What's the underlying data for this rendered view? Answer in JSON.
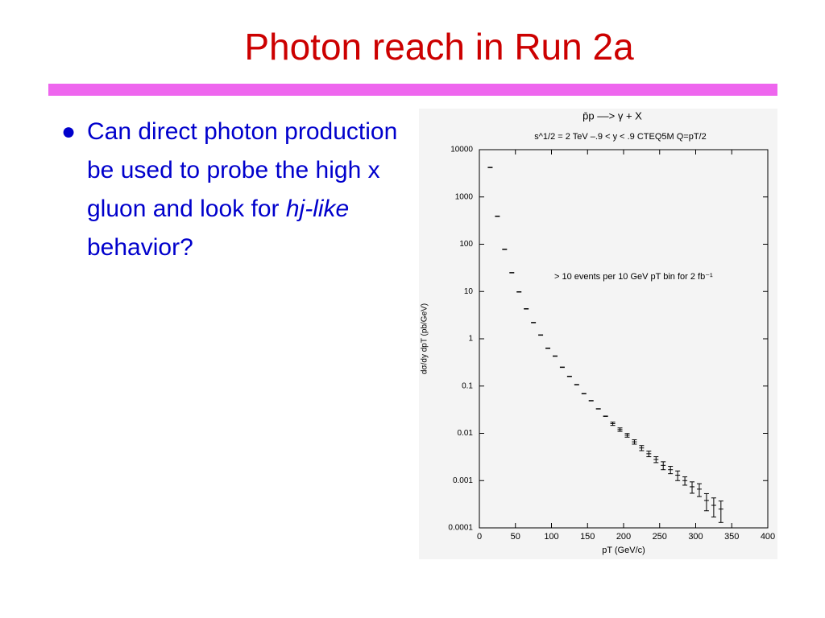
{
  "title": "Photon reach in Run 2a",
  "bullet": {
    "text": "Can direct photon production be used to probe the high x gluon and look for",
    "emphasis": "hj-like",
    "tail": "behavior?"
  },
  "chart_data": {
    "type": "scatter",
    "title": "p̄p ––> γ + X",
    "subtitle": "s^1/2 = 2 TeV    –.9 < y < .9    CTEQ5M    Q=pT/2",
    "annotation": "> 10 events per 10 GeV pT bin for 2 fb⁻¹",
    "xlabel": "pT (GeV/c)",
    "ylabel": "dσ/dy dpT (pb/GeV)",
    "x": [
      15,
      25,
      35,
      45,
      55,
      65,
      75,
      85,
      95,
      105,
      115,
      125,
      135,
      145,
      155,
      165,
      175,
      185,
      195,
      205,
      215,
      225,
      235,
      245,
      255,
      265,
      275,
      285,
      295,
      305,
      315,
      325,
      335
    ],
    "values": [
      4200,
      390,
      78,
      25,
      9.8,
      4.3,
      2.2,
      1.2,
      0.63,
      0.43,
      0.25,
      0.16,
      0.107,
      0.069,
      0.049,
      0.033,
      0.023,
      0.016,
      0.012,
      0.0091,
      0.0066,
      0.0049,
      0.0037,
      0.0028,
      0.0021,
      0.0017,
      0.0013,
      0.001,
      0.00074,
      0.00066,
      0.00038,
      0.0003,
      0.00025
    ],
    "errors": [
      null,
      null,
      null,
      null,
      null,
      null,
      null,
      null,
      null,
      null,
      null,
      null,
      null,
      null,
      null,
      null,
      null,
      0.0013,
      0.001,
      0.0008,
      0.0007,
      0.0006,
      0.0005,
      0.0004,
      0.0004,
      0.0003,
      0.0003,
      0.0002,
      0.0002,
      0.0002,
      0.00015,
      0.00013,
      0.00012
    ],
    "color": "#000000",
    "log_y": true,
    "xlim": [
      0,
      400
    ],
    "xticks": [
      0,
      50,
      100,
      150,
      200,
      250,
      300,
      350,
      400
    ],
    "ylim": [
      0.0001,
      10000
    ],
    "yticks": [
      0.0001,
      0.001,
      0.01,
      0.1,
      1,
      10,
      100,
      1000,
      10000
    ]
  }
}
